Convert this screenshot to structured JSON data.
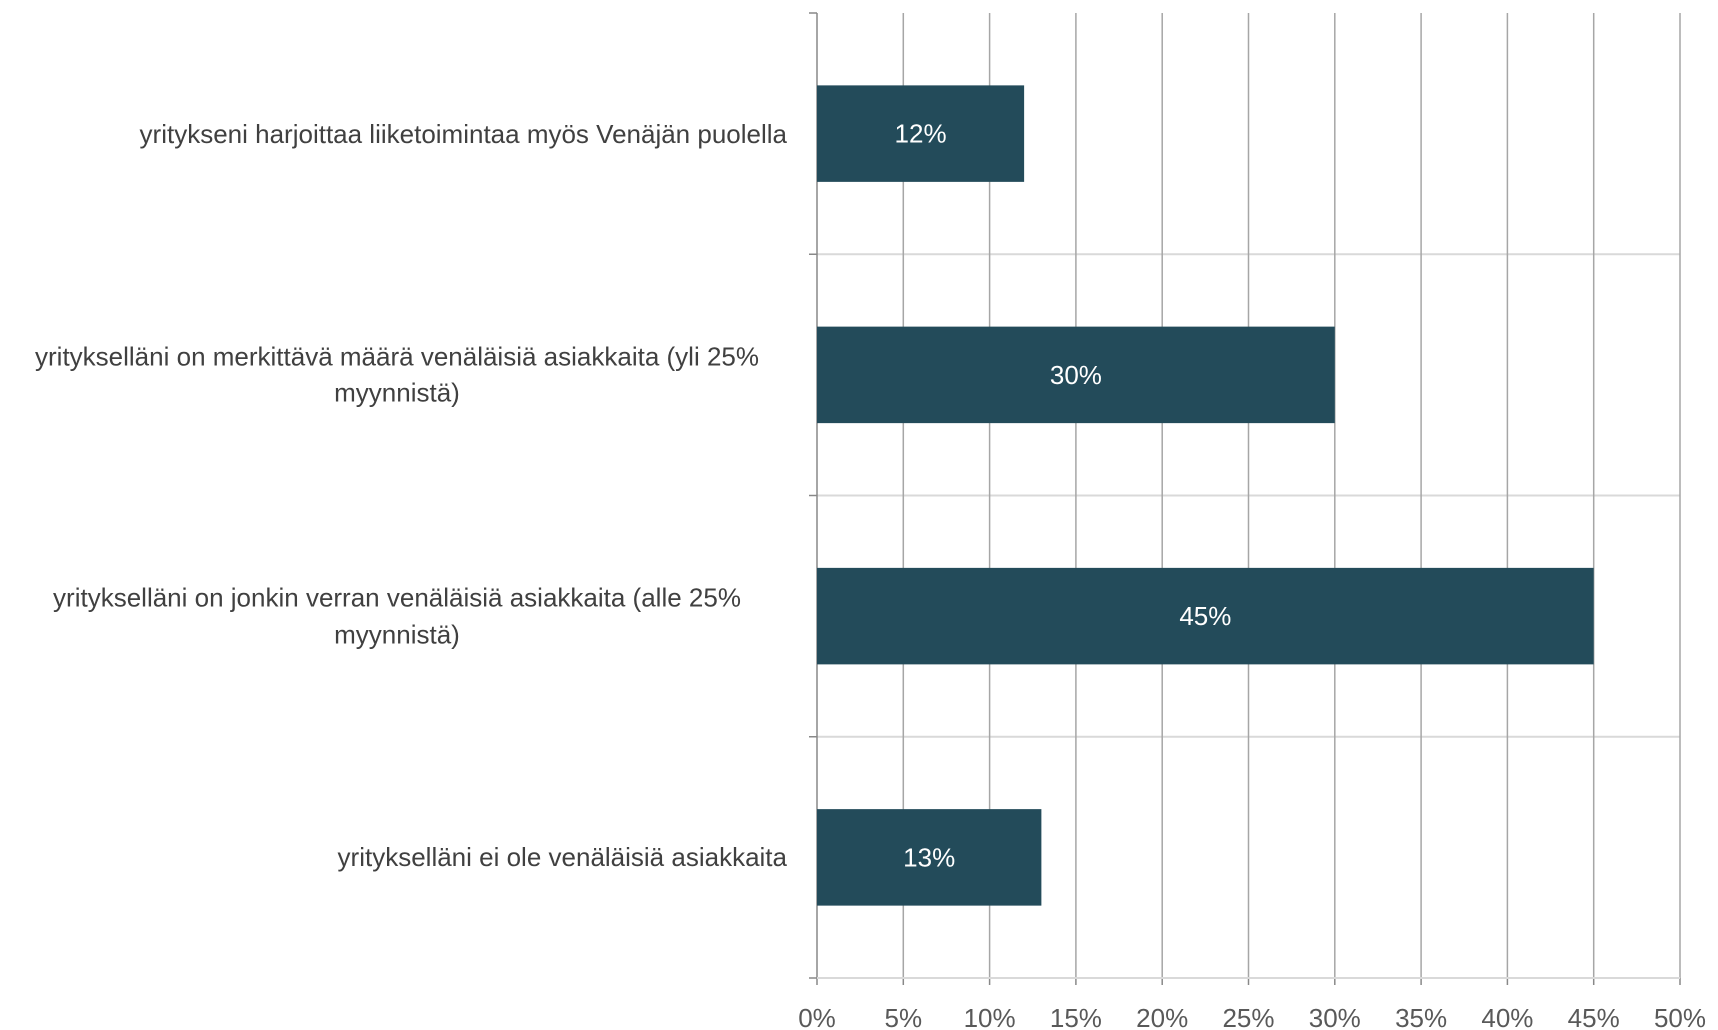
{
  "chart_data": {
    "type": "bar",
    "orientation": "horizontal",
    "categories": [
      "yritykseni harjoittaa liiketoimintaa myös Venäjän puolella",
      "yritykselläni on merkittävä määrä venäläisiä asiakkaita (yli 25% myynnistä)",
      "yritykselläni on jonkin verran venäläisiä asiakkaita (alle 25% myynnistä)",
      "yritykselläni ei ole venäläisiä asiakkaita"
    ],
    "values": [
      12,
      30,
      45,
      13
    ],
    "value_labels": [
      "12%",
      "30%",
      "45%",
      "13%"
    ],
    "color": "#234b5a",
    "xlim": [
      0,
      50
    ],
    "xticks": [
      {
        "value": 0,
        "label": "0%"
      },
      {
        "value": 5,
        "label": "5%"
      },
      {
        "value": 10,
        "label": "10%"
      },
      {
        "value": 15,
        "label": "15%"
      },
      {
        "value": 20,
        "label": "20%"
      },
      {
        "value": 25,
        "label": "25%"
      },
      {
        "value": 30,
        "label": "30%"
      },
      {
        "value": 35,
        "label": "35%"
      },
      {
        "value": 40,
        "label": "40%"
      },
      {
        "value": 45,
        "label": "45%"
      },
      {
        "value": 50,
        "label": "50%"
      }
    ],
    "grid": true
  }
}
